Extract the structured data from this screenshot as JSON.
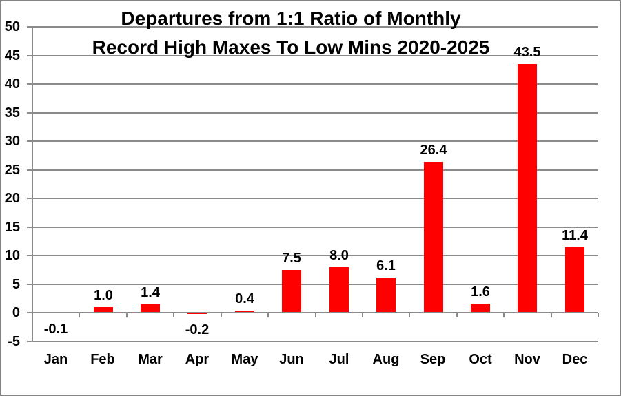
{
  "title": {
    "line1": "Departures from 1:1 Ratio of Monthly",
    "line2": "Record High Maxes To Low Mins 2020-2025"
  },
  "chart_data": {
    "type": "bar",
    "title": "Departures from 1:1 Ratio of Monthly Record High Maxes To Low Mins 2020-2025",
    "categories": [
      "Jan",
      "Feb",
      "Mar",
      "Apr",
      "May",
      "Jun",
      "Jul",
      "Aug",
      "Sep",
      "Oct",
      "Nov",
      "Dec"
    ],
    "values": [
      -0.1,
      1.0,
      1.4,
      -0.2,
      0.4,
      7.5,
      8.0,
      6.1,
      26.4,
      1.6,
      43.5,
      11.4
    ],
    "labels": [
      "-0.1",
      "1.0",
      "1.4",
      "-0.2",
      "0.4",
      "7.5",
      "8.0",
      "6.1",
      "26.4",
      "1.6",
      "43.5",
      "11.4"
    ],
    "ylim": [
      -5,
      50
    ],
    "yticks": [
      50,
      45,
      40,
      35,
      30,
      25,
      20,
      15,
      10,
      5,
      0,
      -5
    ],
    "xlabel": "",
    "ylabel": "",
    "grid": true,
    "legend": false,
    "colors": {
      "bar": "#FF0000",
      "gridline": "#8A8A8A",
      "axis": "#8A8A8A",
      "text": "#000000",
      "frame_border": "#848484",
      "background": "#FFFFFF"
    }
  }
}
